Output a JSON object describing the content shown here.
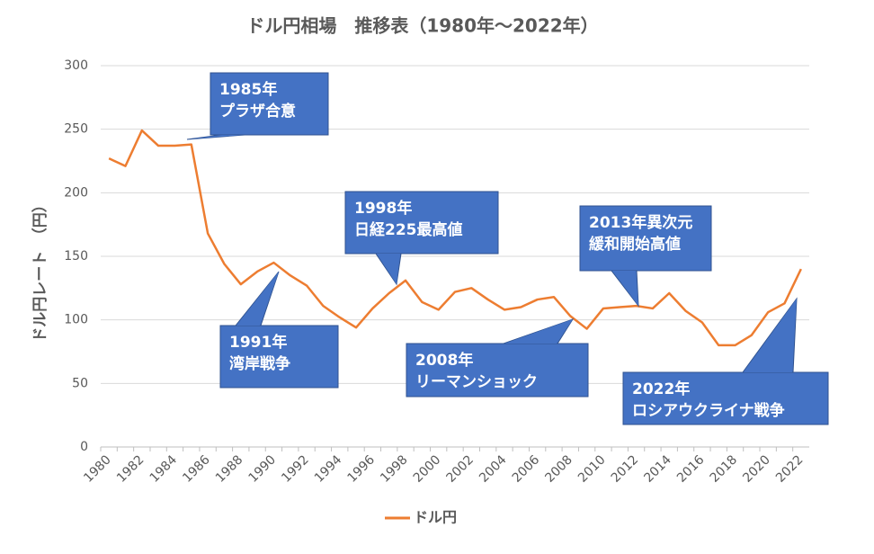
{
  "chart_data": {
    "type": "line",
    "title": "ドル円相場　推移表（1980年～2022年）",
    "y_label": "ドル円レート　（円）",
    "categories": [
      "1980",
      null,
      "1982",
      null,
      "1984",
      null,
      "1986",
      null,
      "1988",
      null,
      "1990",
      null,
      "1992",
      null,
      "1994",
      null,
      "1996",
      null,
      "1998",
      null,
      "2000",
      null,
      "2002",
      null,
      "2004",
      null,
      "2006",
      null,
      "2008",
      null,
      "2010",
      null,
      "2012",
      null,
      "2014",
      null,
      "2016",
      null,
      "2018",
      null,
      "2020",
      null,
      "2022"
    ],
    "series": [
      {
        "name": "ドル円",
        "color": "#ed7d31",
        "values": [
          227,
          221,
          249,
          237,
          237,
          238,
          168,
          144,
          128,
          138,
          145,
          135,
          127,
          111,
          102,
          94,
          109,
          121,
          131,
          114,
          108,
          122,
          125,
          116,
          108,
          110,
          116,
          118,
          103,
          93,
          109,
          110,
          111,
          109,
          121,
          107,
          98,
          80,
          80,
          88,
          106,
          113,
          140
        ]
      }
    ],
    "ylim": [
      0,
      300
    ],
    "yticks": [
      0,
      50,
      100,
      150,
      200,
      250,
      300
    ],
    "grid": true,
    "legend": "bottom",
    "annotations": [
      {
        "lines": [
          "1985年",
          "プラザ合意"
        ]
      },
      {
        "lines": [
          "1991年",
          "湾岸戦争"
        ]
      },
      {
        "lines": [
          "1998年",
          "日経225最高値"
        ]
      },
      {
        "lines": [
          "2008年",
          "リーマンショック"
        ]
      },
      {
        "lines": [
          "2013年異次元",
          "緩和開始高値"
        ]
      },
      {
        "lines": [
          "2022年",
          "ロシアウクライナ戦争"
        ]
      }
    ]
  }
}
